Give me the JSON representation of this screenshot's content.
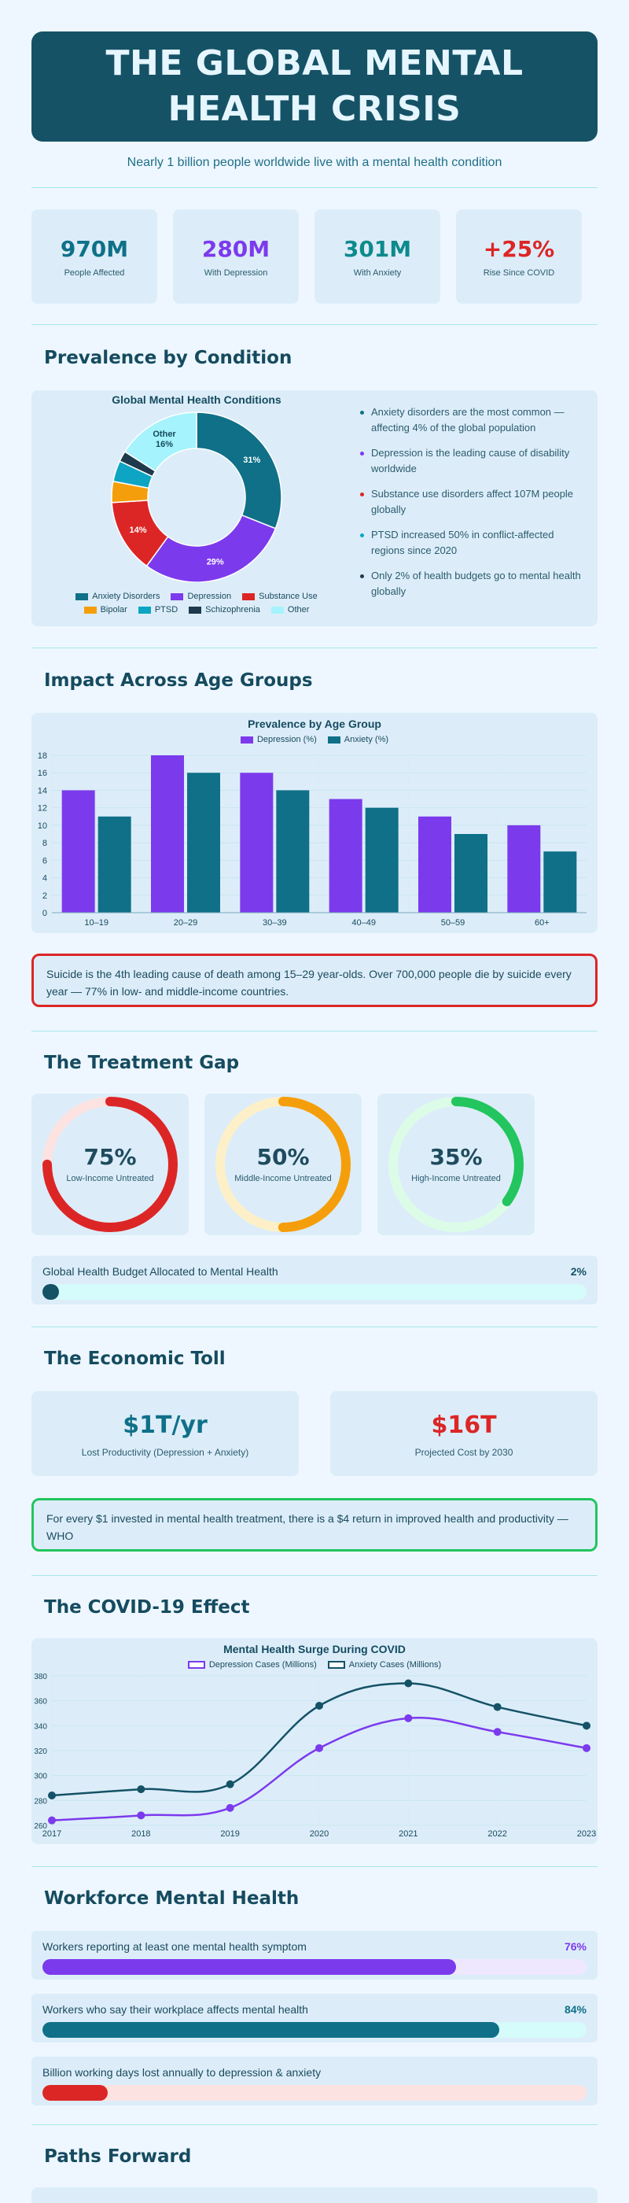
{
  "header": {
    "title_line1": "THE GLOBAL MENTAL",
    "title_line2": "HEALTH CRISIS",
    "subtitle": "Nearly 1 billion people worldwide live with a mental health condition"
  },
  "stats": [
    {
      "value": "970M",
      "label": "People Affected",
      "color": "#0f7088"
    },
    {
      "value": "280M",
      "label": "With Depression",
      "color": "#7c3aed"
    },
    {
      "value": "301M",
      "label": "With Anxiety",
      "color": "#0d8a8c"
    },
    {
      "value": "+25%",
      "label": "Rise Since COVID",
      "color": "#dc2626"
    }
  ],
  "prevalence": {
    "heading": "Prevalence by Condition",
    "facts": [
      {
        "text": "Anxiety disorders are the most common — affecting 4% of the global population",
        "color": "#0f7088"
      },
      {
        "text": "Depression is the leading cause of disability worldwide",
        "color": "#7c3aed"
      },
      {
        "text": "Substance use disorders affect 107M people globally",
        "color": "#dc2626"
      },
      {
        "text": "PTSD increased 50% in conflict-affected regions since 2020",
        "color": "#0ea5c4"
      },
      {
        "text": "Only 2% of health budgets go to mental health globally",
        "color": "#1e3a4c"
      }
    ]
  },
  "age": {
    "heading": "Impact Across Age Groups",
    "alert": "Suicide is the 4th leading cause of death among 15–29 year-olds. Over 700,000 people die by suicide every year — 77% in low- and middle-income countries."
  },
  "treatment": {
    "heading": "The Treatment Gap",
    "gauges": [
      {
        "value": "75%",
        "percent": 75,
        "label": "Low-Income Untreated",
        "color": "#dc2626",
        "track": "#fde2e2"
      },
      {
        "value": "50%",
        "percent": 50,
        "label": "Middle-Income Untreated",
        "color": "#f59e0b",
        "track": "#fdf0c8"
      },
      {
        "value": "35%",
        "percent": 35,
        "label": "High-Income Untreated",
        "color": "#22c55e",
        "track": "#dcfce7"
      }
    ],
    "budget": {
      "label": "Global Health Budget Allocated to Mental Health",
      "value": "2%",
      "percent": 2,
      "color": "#155266",
      "track": "#d6fbfb"
    }
  },
  "economic": {
    "heading": "The Economic Toll",
    "cards": [
      {
        "value": "$1T/yr",
        "label": "Lost Productivity (Depression + Anxiety)",
        "color": "#0f7088"
      },
      {
        "value": "$16T",
        "label": "Projected Cost by 2030",
        "color": "#dc2626"
      }
    ],
    "note": "For every $1 invested in mental health treatment, there is a $4 return in improved health and productivity — WHO"
  },
  "covid": {
    "heading": "The COVID-19 Effect"
  },
  "workforce": {
    "heading": "Workforce Mental Health",
    "bars": [
      {
        "label": "Workers reporting at least one mental health symptom",
        "value": "76%",
        "percent": 76,
        "color": "#7c3aed",
        "track": "#efe7fd",
        "value_color": "#7c3aed"
      },
      {
        "label": "Workers who say their workplace affects mental health",
        "value": "84%",
        "percent": 84,
        "color": "#0f7088",
        "track": "#d6fbfb",
        "value_color": "#0f7088"
      },
      {
        "label": "Billion working days lost annually to depression & anxiety",
        "value": "",
        "percent": 12,
        "color": "#dc2626",
        "track": "#fde2e2",
        "value_color": "#dc2626"
      }
    ]
  },
  "paths": {
    "heading": "Paths Forward"
  },
  "chart_data": [
    {
      "type": "pie",
      "title": "Global Mental Health Conditions",
      "donut": true,
      "categories": [
        "Anxiety Disorders",
        "Depression",
        "Substance Use",
        "Bipolar",
        "PTSD",
        "Schizophrenia",
        "Other"
      ],
      "values": [
        31,
        29,
        14,
        4,
        4,
        2,
        16
      ],
      "data_labels": [
        "31%",
        "29%",
        "14%",
        "",
        "",
        "",
        "Other\n16%"
      ],
      "colors": [
        "#0f7088",
        "#7c3aed",
        "#dc2626",
        "#f59e0b",
        "#0ea5c4",
        "#1e3a4c",
        "#a5f3fc"
      ],
      "legend": "bottom"
    },
    {
      "type": "bar",
      "title": "Prevalence by Age Group",
      "categories": [
        "10–19",
        "20–29",
        "30–39",
        "40–49",
        "50–59",
        "60+"
      ],
      "series": [
        {
          "name": "Depression (%)",
          "values": [
            14,
            18,
            16,
            13,
            11,
            10
          ],
          "color": "#7c3aed"
        },
        {
          "name": "Anxiety (%)",
          "values": [
            11,
            16,
            14,
            12,
            9,
            7
          ],
          "color": "#0f7088"
        }
      ],
      "ylim": [
        0,
        18
      ],
      "yticks": [
        0,
        2,
        4,
        6,
        8,
        10,
        12,
        14,
        16,
        18
      ],
      "grid": true,
      "legend": "top"
    },
    {
      "type": "line",
      "title": "Mental Health Surge During COVID",
      "x": [
        "2017",
        "2018",
        "2019",
        "2020",
        "2021",
        "2022",
        "2023"
      ],
      "series": [
        {
          "name": "Depression Cases (Millions)",
          "values": [
            264,
            268,
            274,
            322,
            346,
            335,
            322
          ],
          "color": "#7c3aed"
        },
        {
          "name": "Anxiety Cases (Millions)",
          "values": [
            284,
            289,
            293,
            356,
            374,
            355,
            340
          ],
          "color": "#155266"
        }
      ],
      "ylim": [
        260,
        380
      ],
      "yticks": [
        260,
        280,
        300,
        320,
        340,
        360,
        380
      ],
      "grid": true,
      "legend": "top"
    }
  ]
}
